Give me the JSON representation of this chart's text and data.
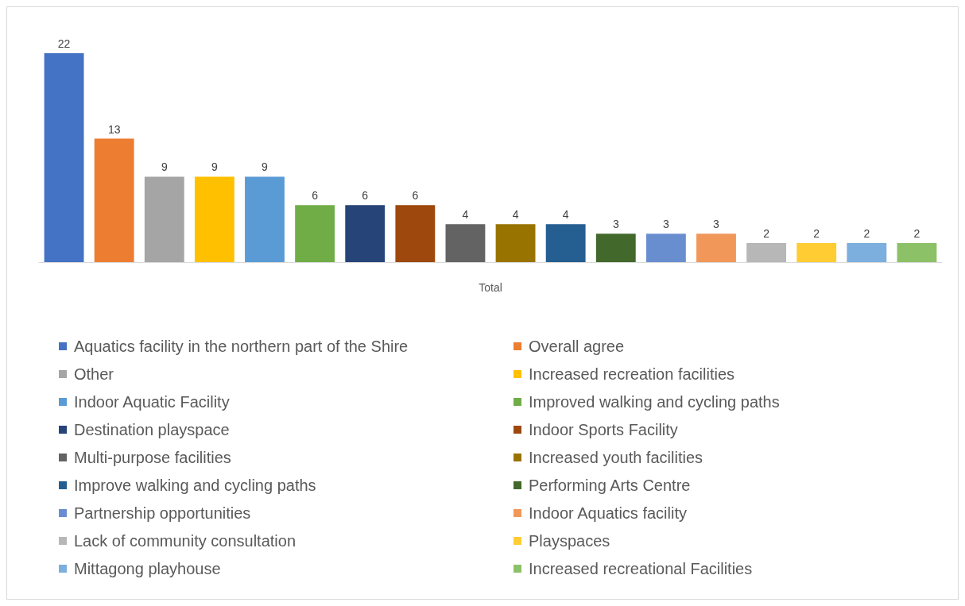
{
  "chart_data": {
    "type": "bar",
    "xlabel": "Total",
    "categories": [
      null,
      null,
      null,
      null,
      null,
      null,
      null,
      null,
      null,
      null,
      null,
      null,
      null,
      null,
      null,
      null,
      null,
      null
    ],
    "stacked": true,
    "data_labels": true,
    "legend": "bottom",
    "grid": false,
    "series": [
      {
        "name": "Aquatics facility in the northern part of the Shire",
        "color": "#4472c4",
        "values": [
          22,
          null,
          null,
          null,
          null,
          null,
          null,
          null,
          null,
          null,
          null,
          null,
          null,
          null,
          null,
          null,
          null,
          null
        ]
      },
      {
        "name": "Overall agree",
        "color": "#ed7d31",
        "values": [
          null,
          13,
          null,
          null,
          null,
          null,
          null,
          null,
          null,
          null,
          null,
          null,
          null,
          null,
          null,
          null,
          null,
          null
        ]
      },
      {
        "name": "Other",
        "color": "#a5a5a5",
        "values": [
          null,
          null,
          9,
          null,
          null,
          null,
          null,
          null,
          null,
          null,
          null,
          null,
          null,
          null,
          null,
          null,
          null,
          null
        ]
      },
      {
        "name": "Increased recreation facilities",
        "color": "#ffc000",
        "values": [
          null,
          null,
          null,
          9,
          null,
          null,
          null,
          null,
          null,
          null,
          null,
          null,
          null,
          null,
          null,
          null,
          null,
          null
        ]
      },
      {
        "name": "Indoor Aquatic Facility",
        "color": "#5b9bd5",
        "values": [
          null,
          null,
          null,
          null,
          9,
          null,
          null,
          null,
          null,
          null,
          null,
          null,
          null,
          null,
          null,
          null,
          null,
          null
        ]
      },
      {
        "name": "Improved walking and cycling paths",
        "color": "#70ad47",
        "values": [
          null,
          null,
          null,
          null,
          null,
          6,
          null,
          null,
          null,
          null,
          null,
          null,
          null,
          null,
          null,
          null,
          null,
          null
        ]
      },
      {
        "name": "Destination playspace",
        "color": "#264478",
        "values": [
          null,
          null,
          null,
          null,
          null,
          null,
          6,
          null,
          null,
          null,
          null,
          null,
          null,
          null,
          null,
          null,
          null,
          null
        ]
      },
      {
        "name": "Indoor Sports Facility",
        "color": "#9e480e",
        "values": [
          null,
          null,
          null,
          null,
          null,
          null,
          null,
          6,
          null,
          null,
          null,
          null,
          null,
          null,
          null,
          null,
          null,
          null
        ]
      },
      {
        "name": "Multi-purpose facilities",
        "color": "#636363",
        "values": [
          null,
          null,
          null,
          null,
          null,
          null,
          null,
          null,
          4,
          null,
          null,
          null,
          null,
          null,
          null,
          null,
          null,
          null
        ]
      },
      {
        "name": "Increased youth facilities",
        "color": "#997300",
        "values": [
          null,
          null,
          null,
          null,
          null,
          null,
          null,
          null,
          null,
          4,
          null,
          null,
          null,
          null,
          null,
          null,
          null,
          null
        ]
      },
      {
        "name": "Improve walking and cycling paths",
        "color": "#255e91",
        "values": [
          null,
          null,
          null,
          null,
          null,
          null,
          null,
          null,
          null,
          null,
          4,
          null,
          null,
          null,
          null,
          null,
          null,
          null
        ]
      },
      {
        "name": "Performing Arts Centre",
        "color": "#43682b",
        "values": [
          null,
          null,
          null,
          null,
          null,
          null,
          null,
          null,
          null,
          null,
          null,
          3,
          null,
          null,
          null,
          null,
          null,
          null
        ]
      },
      {
        "name": "Partnership opportunities",
        "color": "#698ed0",
        "values": [
          null,
          null,
          null,
          null,
          null,
          null,
          null,
          null,
          null,
          null,
          null,
          null,
          3,
          null,
          null,
          null,
          null,
          null
        ]
      },
      {
        "name": "Indoor Aquatics facility",
        "color": "#f1975a",
        "values": [
          null,
          null,
          null,
          null,
          null,
          null,
          null,
          null,
          null,
          null,
          null,
          null,
          null,
          3,
          null,
          null,
          null,
          null
        ]
      },
      {
        "name": "Lack of community consultation",
        "color": "#b7b7b7",
        "values": [
          null,
          null,
          null,
          null,
          null,
          null,
          null,
          null,
          null,
          null,
          null,
          null,
          null,
          null,
          2,
          null,
          null,
          null
        ]
      },
      {
        "name": "Playspaces",
        "color": "#ffcd33",
        "values": [
          null,
          null,
          null,
          null,
          null,
          null,
          null,
          null,
          null,
          null,
          null,
          null,
          null,
          null,
          null,
          2,
          null,
          null
        ]
      },
      {
        "name": "Mittagong playhouse",
        "color": "#7cafdd",
        "values": [
          null,
          null,
          null,
          null,
          null,
          null,
          null,
          null,
          null,
          null,
          null,
          null,
          null,
          null,
          null,
          null,
          2,
          null
        ]
      },
      {
        "name": "Increased recreational Facilities",
        "color": "#8cc168",
        "values": [
          null,
          null,
          null,
          null,
          null,
          null,
          null,
          null,
          null,
          null,
          null,
          null,
          null,
          null,
          null,
          null,
          null,
          2
        ]
      }
    ]
  }
}
